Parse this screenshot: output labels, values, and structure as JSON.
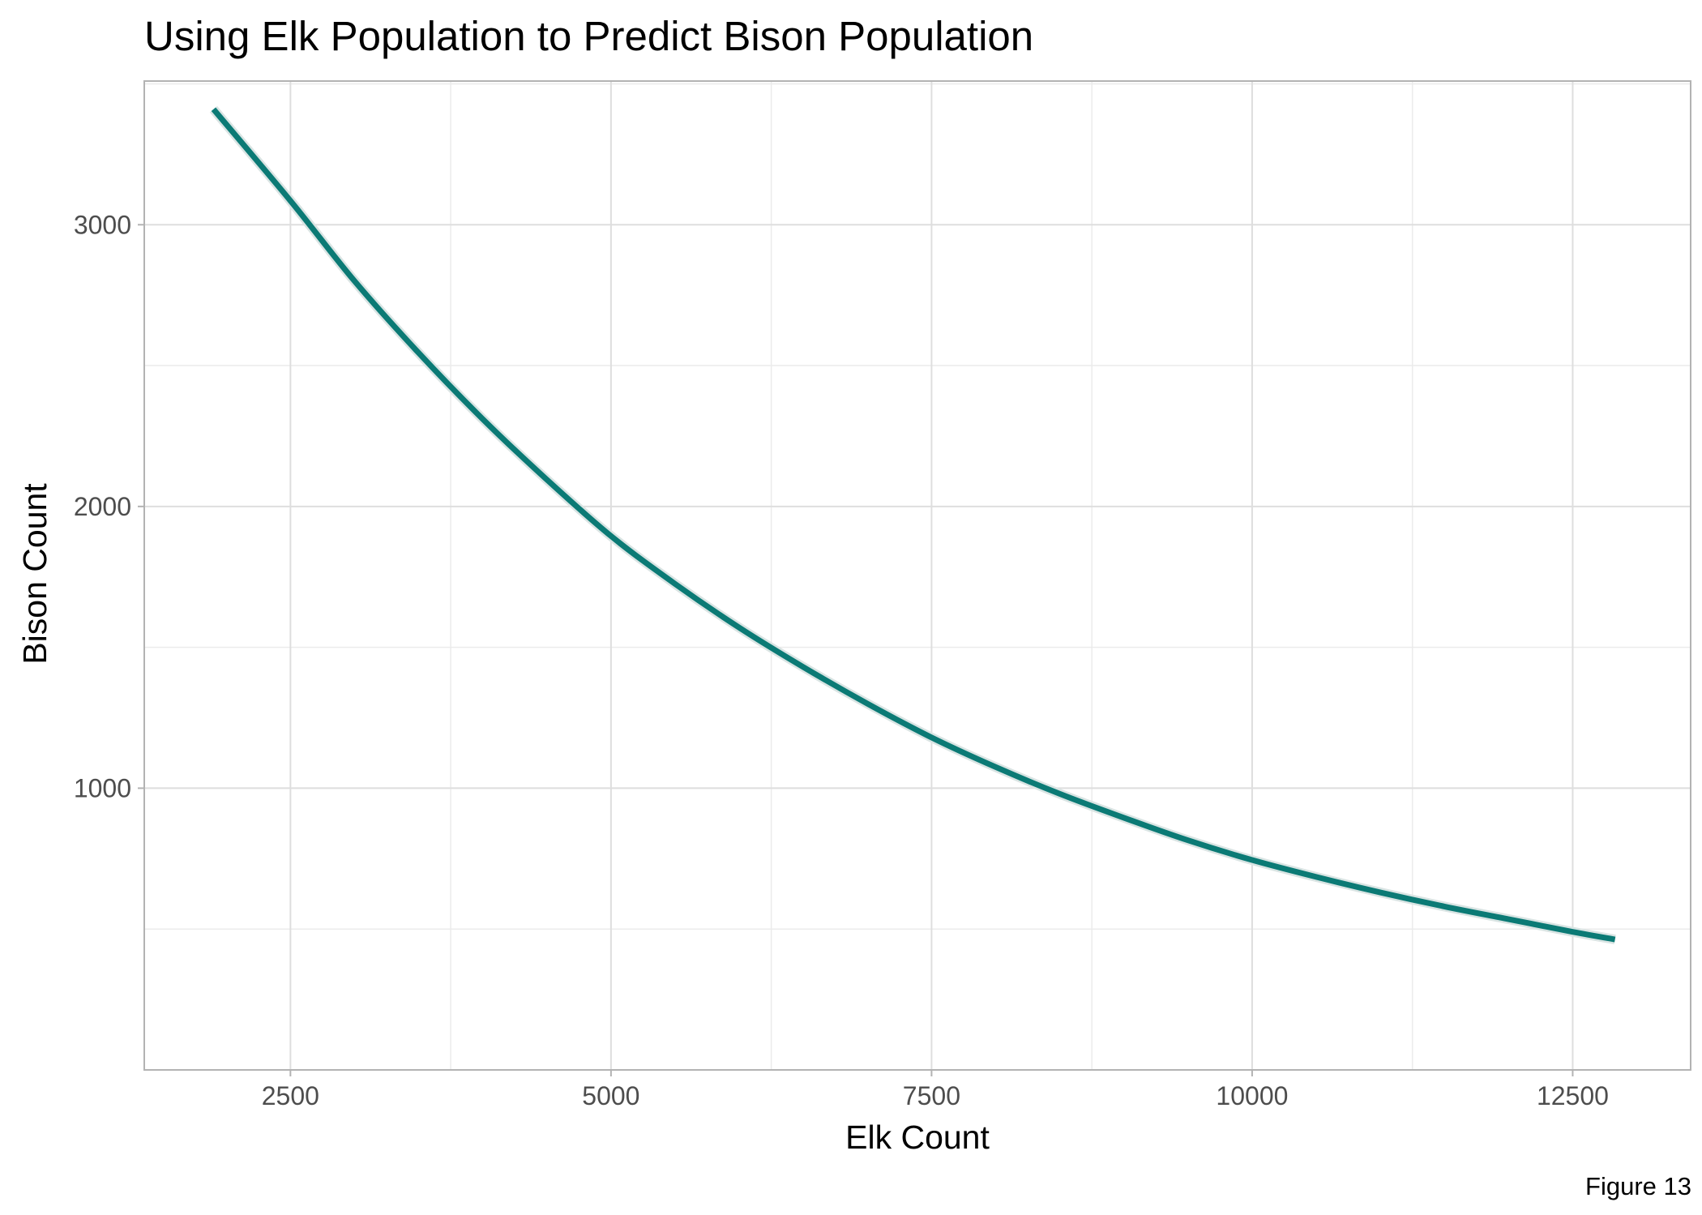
{
  "chart_data": {
    "type": "line",
    "title": "Using Elk Population to Predict Bison Population",
    "xlabel": "Elk Count",
    "ylabel": "Bison Count",
    "caption": "Figure 13",
    "xlim": [
      1360,
      13420
    ],
    "ylim": [
      0,
      3510
    ],
    "x_ticks": [
      2500,
      5000,
      7500,
      10000,
      12500
    ],
    "x_tick_labels": [
      "2500",
      "5000",
      "7500",
      "10000",
      "12500"
    ],
    "y_ticks": [
      1000,
      2000,
      3000
    ],
    "y_tick_labels": [
      "1000",
      "2000",
      "3000"
    ],
    "grid": true,
    "series": [
      {
        "x": [
          1900,
          2500,
          3000,
          3500,
          4000,
          4500,
          5000,
          5500,
          6000,
          6500,
          7000,
          7500,
          8000,
          8500,
          9000,
          9500,
          10000,
          10500,
          11000,
          11500,
          12000,
          12500,
          12830
        ],
        "values": [
          3410,
          3085,
          2800,
          2545,
          2310,
          2095,
          1895,
          1725,
          1570,
          1430,
          1300,
          1180,
          1075,
          980,
          895,
          815,
          745,
          685,
          630,
          580,
          535,
          490,
          463
        ],
        "color": "#0b7a75"
      }
    ]
  }
}
